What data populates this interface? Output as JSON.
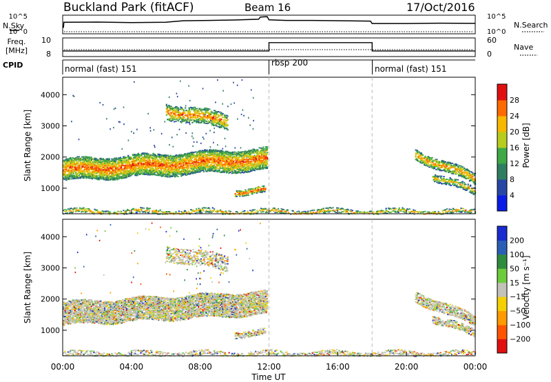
{
  "header": {
    "station": "Buckland Park (fitACF)",
    "beam": "Beam 16",
    "date": "17/Oct/2016"
  },
  "noise_panel": {
    "left_label": "N.Sky",
    "right_label": "N.Search",
    "left_ticks": [
      "10^5",
      "10^0"
    ],
    "right_ticks": [
      "10^5",
      "10^0"
    ],
    "sky_series": [
      {
        "hour": 0.0,
        "level": 0.35
      },
      {
        "hour": 0.05,
        "level": 0.35
      },
      {
        "hour": 0.07,
        "level": 0.62
      },
      {
        "hour": 2.0,
        "level": 0.63
      },
      {
        "hour": 4.0,
        "level": 0.6
      },
      {
        "hour": 6.0,
        "level": 0.62
      },
      {
        "hour": 7.0,
        "level": 0.7
      },
      {
        "hour": 8.5,
        "level": 0.72
      },
      {
        "hour": 10.0,
        "level": 0.74
      },
      {
        "hour": 11.4,
        "level": 0.78
      },
      {
        "hour": 11.5,
        "level": 0.9
      },
      {
        "hour": 11.9,
        "level": 0.92
      },
      {
        "hour": 12.0,
        "level": 0.75
      },
      {
        "hour": 13.0,
        "level": 0.72
      },
      {
        "hour": 14.5,
        "level": 0.72
      },
      {
        "hour": 17.9,
        "level": 0.68
      },
      {
        "hour": 18.0,
        "level": 0.55
      },
      {
        "hour": 20.0,
        "level": 0.55
      },
      {
        "hour": 22.0,
        "level": 0.57
      },
      {
        "hour": 24.0,
        "level": 0.56
      }
    ]
  },
  "freq_panel": {
    "left_label": "Freq.",
    "left_unit": "[MHz]",
    "right_label": "Nave",
    "left_ticks": [
      "10",
      "8"
    ],
    "right_ticks": [
      "60",
      "0"
    ],
    "freq_series": [
      {
        "hour": 0.0,
        "level": 0.3
      },
      {
        "hour": 12.0,
        "level": 0.3
      },
      {
        "hour": 12.0,
        "level": 0.75
      },
      {
        "hour": 18.0,
        "level": 0.75
      },
      {
        "hour": 18.0,
        "level": 0.3
      },
      {
        "hour": 24.0,
        "level": 0.3
      }
    ]
  },
  "cpid": {
    "label": "CPID",
    "segments": [
      {
        "start_hour": 0,
        "end_hour": 12,
        "name": "normal (fast) 151"
      },
      {
        "start_hour": 12,
        "end_hour": 18,
        "name": "rbsp 200"
      },
      {
        "start_hour": 18,
        "end_hour": 24,
        "name": "normal (fast) 151"
      }
    ]
  },
  "chart_data": [
    {
      "type": "heatmap",
      "title": "",
      "xlabel": "Time UT",
      "ylabel": "Slant Range [km]",
      "xlim_hours": [
        0,
        24
      ],
      "ylim_km": [
        180,
        4560
      ],
      "x_ticks": [
        "00:00",
        "04:00",
        "08:00",
        "12:00",
        "16:00",
        "20:00",
        "00:00"
      ],
      "y_ticks": [
        1000,
        2000,
        3000,
        4000
      ],
      "colorbar": {
        "label": "Power [dB]",
        "ticks": [
          4,
          8,
          12,
          16,
          20,
          24,
          28
        ],
        "colors": [
          "#0a1be6",
          "#2846a6",
          "#2f7e62",
          "#3ea945",
          "#b8cc1e",
          "#f7b800",
          "#ff6a00",
          "#e01010"
        ]
      },
      "bands": [
        {
          "t0": 0.0,
          "t1": 11.9,
          "r_start": 1600,
          "r_end": 1950,
          "width_km": 700,
          "level": 0.5,
          "density": 0.9
        },
        {
          "t0": 6.0,
          "t1": 9.6,
          "r_start": 3500,
          "r_end": 3150,
          "width_km": 500,
          "level": 0.45,
          "density": 0.7
        },
        {
          "t0": 10.0,
          "t1": 11.8,
          "r_start": 900,
          "r_end": 950,
          "width_km": 200,
          "level": 0.5,
          "density": 0.8
        },
        {
          "t0": 20.5,
          "t1": 24.0,
          "r_start": 2100,
          "r_end": 1300,
          "width_km": 350,
          "level": 0.4,
          "density": 0.8
        },
        {
          "t0": 21.5,
          "t1": 24.0,
          "r_start": 1400,
          "r_end": 900,
          "width_km": 250,
          "level": 0.3,
          "density": 0.7
        },
        {
          "t0": 0.0,
          "t1": 24.0,
          "r_start": 260,
          "r_end": 260,
          "width_km": 160,
          "level": 0.35,
          "density": 0.6
        }
      ]
    },
    {
      "type": "heatmap",
      "title": "",
      "xlabel": "Time UT",
      "ylabel": "Slant Range [km]",
      "xlim_hours": [
        0,
        24
      ],
      "ylim_km": [
        180,
        4560
      ],
      "x_ticks": [
        "00:00",
        "04:00",
        "08:00",
        "12:00",
        "16:00",
        "20:00",
        "00:00"
      ],
      "y_ticks": [
        1000,
        2000,
        3000,
        4000
      ],
      "colorbar": {
        "label": "Velocity [m s⁻¹]",
        "ticks": [
          200,
          100,
          50,
          15,
          -15,
          -50,
          -100,
          -200
        ],
        "colors": [
          "#1a2bd0",
          "#2b5fb5",
          "#2f8b3e",
          "#6ccc3c",
          "#c2c2b8",
          "#f5d000",
          "#ff9a00",
          "#ff5500",
          "#e01010"
        ]
      },
      "bands": [
        {
          "t0": 0.0,
          "t1": 11.9,
          "r_start": 1550,
          "r_end": 1900,
          "width_km": 750,
          "level": 0.45,
          "density": 0.9
        },
        {
          "t0": 6.0,
          "t1": 9.6,
          "r_start": 3500,
          "r_end": 3150,
          "width_km": 500,
          "level": 0.5,
          "density": 0.6
        },
        {
          "t0": 10.0,
          "t1": 11.8,
          "r_start": 900,
          "r_end": 950,
          "width_km": 200,
          "level": 0.3,
          "density": 0.8
        },
        {
          "t0": 20.5,
          "t1": 24.0,
          "r_start": 2100,
          "r_end": 1300,
          "width_km": 350,
          "level": 0.5,
          "density": 0.8
        },
        {
          "t0": 21.5,
          "t1": 24.0,
          "r_start": 1400,
          "r_end": 900,
          "width_km": 250,
          "level": 0.5,
          "density": 0.7
        },
        {
          "t0": 0.0,
          "t1": 24.0,
          "r_start": 260,
          "r_end": 260,
          "width_km": 160,
          "level": 0.5,
          "density": 0.6
        }
      ]
    }
  ]
}
